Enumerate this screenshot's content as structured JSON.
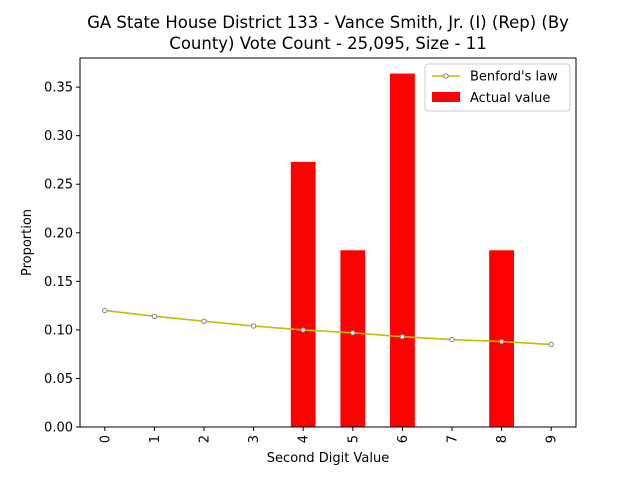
{
  "chart_data": {
    "type": "bar",
    "title_lines": [
      "GA State House District 133 - Vance Smith, Jr. (I) (Rep) (By",
      "County) Vote Count - 25,095, Size - 11"
    ],
    "xlabel": "Second Digit Value",
    "ylabel": "Proportion",
    "categories": [
      "0",
      "1",
      "2",
      "3",
      "4",
      "5",
      "6",
      "7",
      "8",
      "9"
    ],
    "ylim": [
      0,
      0.38
    ],
    "yticks": [
      0.0,
      0.05,
      0.1,
      0.15,
      0.2,
      0.25,
      0.3,
      0.35
    ],
    "ytick_labels": [
      "0.00",
      "0.05",
      "0.10",
      "0.15",
      "0.20",
      "0.25",
      "0.30",
      "0.35"
    ],
    "grid": false,
    "legend_position": "top-right",
    "series": [
      {
        "name": "Benford's law",
        "kind": "line",
        "color": "#bfbf00",
        "marker_edge": "#808080",
        "values": [
          0.12,
          0.114,
          0.109,
          0.104,
          0.1,
          0.097,
          0.093,
          0.09,
          0.088,
          0.085
        ]
      },
      {
        "name": "Actual value",
        "kind": "bar",
        "color": "#ff0000",
        "values": [
          0,
          0,
          0,
          0,
          0.273,
          0.182,
          0.364,
          0,
          0.182,
          0
        ]
      }
    ]
  }
}
